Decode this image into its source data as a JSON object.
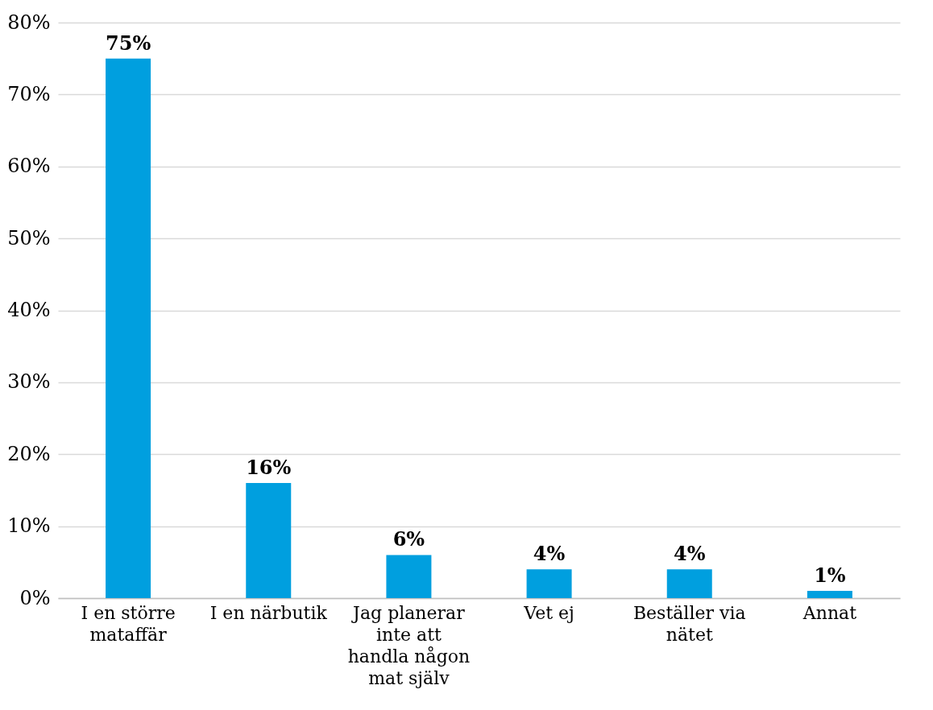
{
  "chart_data": {
    "type": "bar",
    "categories": [
      "I en större mataffär",
      "I en närbutik",
      "Jag planerar inte att handla någon mat själv",
      "Vet ej",
      "Beställer via nätet",
      "Annat"
    ],
    "values": [
      75,
      16,
      6,
      4,
      4,
      1
    ],
    "value_labels": [
      "75%",
      "16%",
      "6%",
      "4%",
      "4%",
      "1%"
    ],
    "color": "#009fdf",
    "ylim": [
      0,
      80
    ],
    "yticks": [
      {
        "value": 0,
        "label": "0%"
      },
      {
        "value": 10,
        "label": "10%"
      },
      {
        "value": 20,
        "label": "20%"
      },
      {
        "value": 30,
        "label": "30%"
      },
      {
        "value": 40,
        "label": "40%"
      },
      {
        "value": 50,
        "label": "50%"
      },
      {
        "value": 60,
        "label": "60%"
      },
      {
        "value": 70,
        "label": "70%"
      },
      {
        "value": 80,
        "label": "80%"
      }
    ],
    "grid": "y"
  }
}
